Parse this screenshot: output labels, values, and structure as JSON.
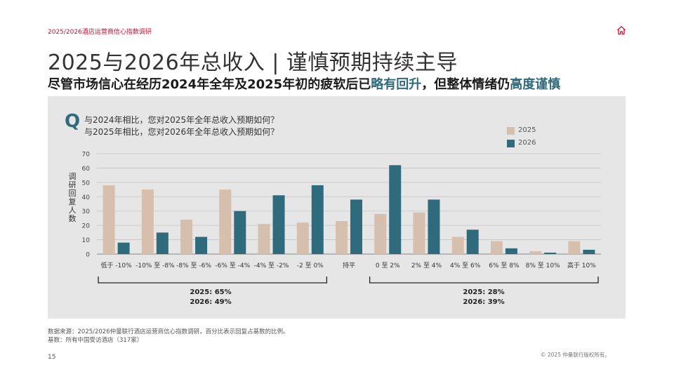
{
  "header": {
    "label": "2025/2026酒店运营商信心指数调研"
  },
  "title": "2025与2026年总收入 | 谨慎预期持续主导",
  "subtitle": {
    "part1": "尽管市场信心在经历2024年全年及2025年初的疲软后已",
    "hl1": "略有回升",
    "part2": "，但整体情绪仍",
    "hl2": "高度谨慎"
  },
  "question": {
    "letter": "Q",
    "line1": "与2024年相比，您对2025年全年总收入预期如何？",
    "line2": "与2025年相比，您对2026年全年总收入预期如何？"
  },
  "colors": {
    "s2025": "#d7bfae",
    "s2026": "#2f6a7d",
    "accent": "#c8102e"
  },
  "chart_data": {
    "type": "bar",
    "ylabel": "调研回复人数",
    "ylim": [
      0,
      70
    ],
    "yticks": [
      0,
      10,
      20,
      30,
      40,
      50,
      60,
      70
    ],
    "categories": [
      "低于 -10%",
      "-10% 至 -8%",
      "-8% 至 -6%",
      "-6% 至 -4%",
      "-4% 至 -2%",
      "-2 至 0%",
      "持平",
      "0 至 2%",
      "2% 至 4%",
      "4% 至 6%",
      "6% 至 8%",
      "8% 至 10%",
      "高于 10%"
    ],
    "series": [
      {
        "name": "2025",
        "values": [
          48,
          45,
          24,
          45,
          21,
          22,
          23,
          28,
          29,
          12,
          9,
          2,
          9
        ]
      },
      {
        "name": "2026",
        "values": [
          8,
          15,
          12,
          30,
          41,
          48,
          38,
          62,
          38,
          17,
          4,
          1,
          3
        ]
      }
    ],
    "groups": [
      {
        "label_2025": "2025: 65%",
        "label_2026": "2026: 49%"
      },
      {
        "label_2025": "2025: 28%",
        "label_2026": "2026: 39%"
      }
    ]
  },
  "footer": {
    "source": "数据来源：2025/2026仲量联行酒店运营商信心指数调研，百分比表示回复占基数的比例。",
    "base": "基数：所有中国受访酒店（317家）",
    "page": "15",
    "copyright": "© 2025 仲量联行版权所有。"
  }
}
